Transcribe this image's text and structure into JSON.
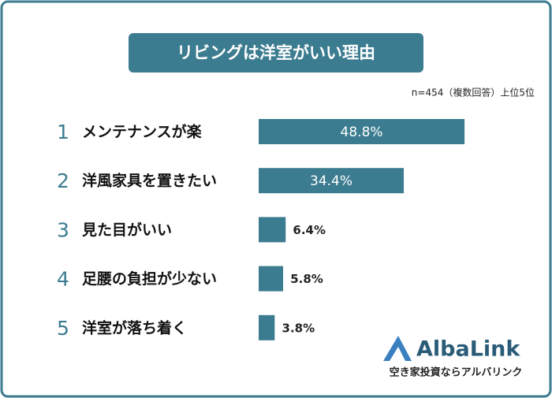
{
  "chart_data": {
    "type": "bar",
    "orientation": "horizontal",
    "title": "リビングは洋室がいい理由",
    "note": "n=454（複数回答）上位5位",
    "ranks": [
      "1",
      "2",
      "3",
      "4",
      "5"
    ],
    "categories": [
      "メンテナンスが楽",
      "洋風家具を置きたい",
      "見た目がいい",
      "足腰の負担が少ない",
      "洋室が落ち着く"
    ],
    "values": [
      48.8,
      34.4,
      6.4,
      5.8,
      3.8
    ],
    "value_labels": [
      "48.8%",
      "34.4%",
      "6.4%",
      "5.8%",
      "3.8%"
    ],
    "color": "#3c7c90"
  },
  "logo": {
    "name": "AlbaLink",
    "tagline": "空き家投資ならアルバリンク"
  }
}
